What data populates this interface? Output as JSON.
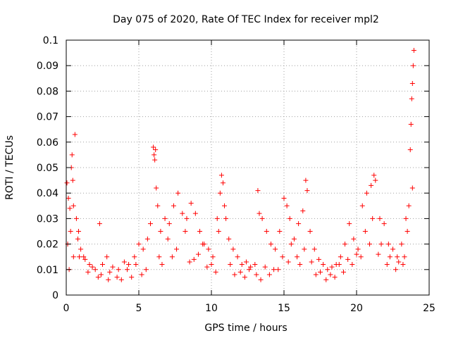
{
  "chart_data": {
    "type": "scatter",
    "title": "Day 075 of 2020, Rate Of TEC Index for receiver mpl2",
    "xlabel": "GPS time / hours",
    "ylabel": "ROTI / TECUs",
    "xlim": [
      0,
      25
    ],
    "ylim": [
      0,
      0.1
    ],
    "xticks": [
      0,
      5,
      10,
      15,
      20,
      25
    ],
    "xtick_labels": [
      "0",
      "5",
      "10",
      "15",
      "20",
      "25"
    ],
    "yticks": [
      0,
      0.01,
      0.02,
      0.03,
      0.04,
      0.05,
      0.06,
      0.07,
      0.08,
      0.09,
      0.1
    ],
    "ytick_labels": [
      "0",
      "0.01",
      "0.02",
      "0.03",
      "0.04",
      "0.05",
      "0.06",
      "0.07",
      "0.08",
      "0.09",
      "0.1"
    ],
    "grid": true,
    "marker": "+",
    "color": "#ff0000",
    "series": [
      {
        "name": "mpl2",
        "x": [
          0.05,
          0.15,
          0.25,
          0.35,
          0.4,
          0.45,
          0.5,
          0.6,
          0.7,
          0.85,
          1.0,
          1.3,
          1.6,
          2.0,
          2.3,
          2.5,
          2.8,
          3.2,
          3.6,
          4.0,
          4.3,
          4.7,
          5.0,
          5.3,
          5.6,
          5.8,
          6.0,
          6.05,
          6.1,
          6.15,
          6.2,
          6.3,
          6.5,
          6.8,
          7.1,
          7.4,
          7.7,
          8.0,
          8.3,
          8.6,
          8.9,
          9.2,
          9.5,
          9.8,
          10.1,
          10.4,
          10.6,
          10.7,
          10.8,
          10.9,
          11.0,
          11.2,
          11.5,
          11.8,
          12.1,
          12.4,
          12.7,
          13.0,
          13.2,
          13.3,
          13.5,
          13.8,
          14.1,
          14.4,
          14.7,
          15.0,
          15.2,
          15.4,
          15.7,
          16.0,
          16.3,
          16.5,
          16.6,
          16.8,
          17.1,
          17.4,
          17.7,
          18.0,
          18.3,
          18.6,
          18.9,
          19.2,
          19.5,
          19.8,
          20.1,
          20.4,
          20.7,
          21.0,
          21.2,
          21.3,
          21.6,
          21.9,
          22.2,
          22.5,
          22.8,
          23.1,
          23.4,
          23.6,
          23.7,
          23.75,
          23.8,
          23.85,
          23.9,
          23.95,
          0.1,
          0.3,
          0.5,
          0.8,
          1.2,
          1.8,
          2.4,
          3.0,
          3.5,
          4.2,
          4.8,
          5.5,
          6.4,
          7.0,
          7.6,
          8.2,
          8.8,
          9.4,
          10.0,
          10.5,
          11.3,
          12.0,
          12.6,
          13.1,
          13.7,
          14.3,
          14.9,
          15.5,
          16.1,
          16.9,
          17.5,
          18.2,
          18.8,
          19.4,
          20.0,
          20.6,
          21.1,
          21.7,
          22.3,
          22.9,
          23.3,
          23.5,
          23.85,
          0.2,
          0.9,
          1.5,
          2.2,
          2.9,
          3.8,
          4.5,
          5.2,
          6.6,
          7.3,
          8.5,
          9.1,
          9.7,
          10.3,
          11.6,
          12.3,
          13.4,
          14.0,
          14.6,
          15.3,
          15.9,
          16.4,
          17.2,
          17.9,
          18.5,
          19.1,
          19.7,
          20.3,
          20.9,
          21.5,
          22.1,
          22.7,
          23.2
        ],
        "y": [
          0.044,
          0.038,
          0.034,
          0.05,
          0.055,
          0.045,
          0.035,
          0.063,
          0.03,
          0.025,
          0.018,
          0.014,
          0.012,
          0.01,
          0.028,
          0.012,
          0.015,
          0.011,
          0.01,
          0.013,
          0.012,
          0.015,
          0.02,
          0.018,
          0.022,
          0.028,
          0.058,
          0.055,
          0.053,
          0.057,
          0.042,
          0.035,
          0.025,
          0.03,
          0.028,
          0.035,
          0.04,
          0.032,
          0.03,
          0.036,
          0.032,
          0.025,
          0.02,
          0.018,
          0.015,
          0.03,
          0.04,
          0.047,
          0.044,
          0.035,
          0.03,
          0.022,
          0.018,
          0.015,
          0.012,
          0.013,
          0.011,
          0.012,
          0.041,
          0.032,
          0.03,
          0.025,
          0.02,
          0.018,
          0.025,
          0.038,
          0.035,
          0.03,
          0.022,
          0.028,
          0.033,
          0.045,
          0.041,
          0.025,
          0.018,
          0.014,
          0.012,
          0.01,
          0.011,
          0.012,
          0.015,
          0.02,
          0.028,
          0.022,
          0.018,
          0.035,
          0.04,
          0.043,
          0.047,
          0.045,
          0.03,
          0.028,
          0.02,
          0.018,
          0.015,
          0.02,
          0.03,
          0.035,
          0.057,
          0.067,
          0.077,
          0.083,
          0.09,
          0.096,
          0.02,
          0.025,
          0.015,
          0.022,
          0.015,
          0.011,
          0.008,
          0.009,
          0.007,
          0.01,
          0.012,
          0.01,
          0.015,
          0.022,
          0.018,
          0.025,
          0.014,
          0.02,
          0.012,
          0.025,
          0.012,
          0.009,
          0.01,
          0.008,
          0.011,
          0.01,
          0.015,
          0.02,
          0.012,
          0.013,
          0.009,
          0.008,
          0.012,
          0.014,
          0.016,
          0.025,
          0.03,
          0.02,
          0.015,
          0.013,
          0.015,
          0.025,
          0.042,
          0.01,
          0.015,
          0.009,
          0.007,
          0.006,
          0.006,
          0.007,
          0.008,
          0.012,
          0.015,
          0.013,
          0.016,
          0.011,
          0.009,
          0.008,
          0.007,
          0.006,
          0.008,
          0.01,
          0.013,
          0.015,
          0.018,
          0.008,
          0.006,
          0.007,
          0.009,
          0.012,
          0.015,
          0.02,
          0.016,
          0.012,
          0.01,
          0.012
        ]
      }
    ]
  }
}
